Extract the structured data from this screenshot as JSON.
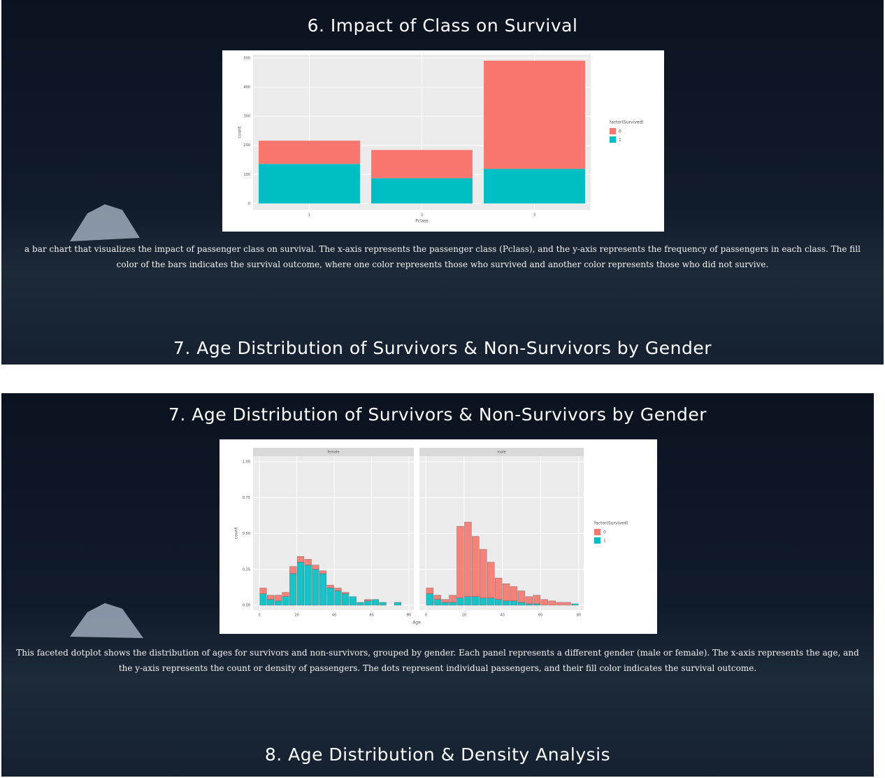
{
  "panels": [
    {
      "heading": "6. Impact of Class on Survival",
      "description": "a bar chart that visualizes the impact of passenger class on survival. The x-axis represents the passenger class (Pclass), and the y-axis represents the frequency of passengers in each class. The fill color of the bars indicates the survival outcome, where one color represents those who survived and another color represents those who did not survive.",
      "next_heading": "7. Age Distribution of Survivors & Non-Survivors by Gender"
    },
    {
      "heading": "7. Age Distribution of Survivors & Non-Survivors by Gender",
      "description": "This faceted dotplot shows the distribution of ages for survivors and non-survivors, grouped by gender. Each panel represents a different gender (male or female). The x-axis represents the age, and the y-axis represents the count or density of passengers. The dots represent individual passengers, and their fill color indicates the survival outcome.",
      "next_heading": "8. Age Distribution & Density Analysis"
    }
  ],
  "chart_data": [
    {
      "type": "bar",
      "stacked": true,
      "x_label": "Pclass",
      "y_label": "count",
      "legend_title": "factor(Survived)",
      "categories": [
        "1",
        "2",
        "3"
      ],
      "series": [
        {
          "name": "0",
          "color": "#F8766D",
          "values": [
            80,
            97,
            372
          ]
        },
        {
          "name": "1",
          "color": "#00BFC4",
          "values": [
            136,
            87,
            119
          ]
        }
      ],
      "ylim": [
        -22,
        512
      ],
      "yticks": [
        0,
        100,
        200,
        300,
        400,
        500
      ],
      "grid": true
    },
    {
      "type": "dotplot",
      "x_label": "Age",
      "y_label": "count",
      "legend_title": "factor(Survived)",
      "xlim": [
        -3.4,
        82.6
      ],
      "xticks": [
        0,
        20,
        40,
        60,
        80
      ],
      "ylim": [
        -0.034,
        1.039
      ],
      "yticks": [
        {
          "value": 0,
          "label": "0.00"
        },
        {
          "value": 0.25,
          "label": "0.25"
        },
        {
          "value": 0.5,
          "label": "0.50"
        },
        {
          "value": 0.75,
          "label": "0.75"
        },
        {
          "value": 1,
          "label": "1.00"
        }
      ],
      "grid": true,
      "bins": [
        0,
        4,
        8,
        12,
        16,
        20,
        24,
        28,
        32,
        36,
        40,
        44,
        48,
        52,
        56,
        60,
        64,
        68,
        72,
        76,
        80
      ],
      "facets": [
        {
          "label": "female",
          "series": [
            {
              "name": "0",
              "color": "#F8766D",
              "values": [
                0.04,
                0.03,
                0.04,
                0.03,
                0.05,
                0.04,
                0.04,
                0.03,
                0.02,
                0.02,
                0.02,
                0.01,
                0,
                0,
                0.01,
                0,
                0,
                0,
                0,
                0
              ]
            },
            {
              "name": "1",
              "color": "#00BFC4",
              "values": [
                0.08,
                0.04,
                0.03,
                0.06,
                0.22,
                0.3,
                0.28,
                0.25,
                0.22,
                0.12,
                0.1,
                0.08,
                0.06,
                0.02,
                0.03,
                0.04,
                0.02,
                0,
                0.02,
                0
              ]
            }
          ]
        },
        {
          "label": "male",
          "series": [
            {
              "name": "0",
              "color": "#F8766D",
              "values": [
                0.04,
                0.03,
                0.02,
                0.05,
                0.5,
                0.52,
                0.42,
                0.34,
                0.25,
                0.15,
                0.12,
                0.1,
                0.08,
                0.05,
                0.06,
                0.04,
                0.03,
                0.02,
                0.02,
                0
              ]
            },
            {
              "name": "1",
              "color": "#00BFC4",
              "values": [
                0.08,
                0.04,
                0.02,
                0.02,
                0.05,
                0.06,
                0.06,
                0.05,
                0.05,
                0.04,
                0.03,
                0.03,
                0.02,
                0.01,
                0.01,
                0,
                0,
                0,
                0,
                0.01
              ]
            }
          ]
        }
      ]
    }
  ]
}
